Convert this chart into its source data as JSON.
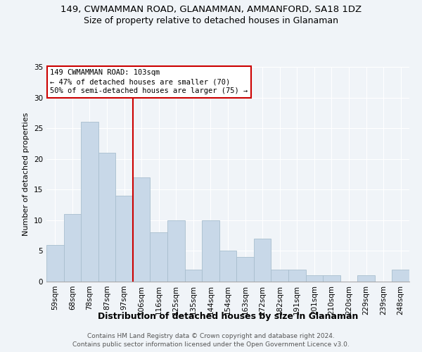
{
  "title": "149, CWMAMMAN ROAD, GLANAMMAN, AMMANFORD, SA18 1DZ",
  "subtitle": "Size of property relative to detached houses in Glanaman",
  "xlabel": "Distribution of detached houses by size in Glanaman",
  "ylabel": "Number of detached properties",
  "categories": [
    "59sqm",
    "68sqm",
    "78sqm",
    "87sqm",
    "97sqm",
    "106sqm",
    "116sqm",
    "125sqm",
    "135sqm",
    "144sqm",
    "154sqm",
    "163sqm",
    "172sqm",
    "182sqm",
    "191sqm",
    "201sqm",
    "210sqm",
    "220sqm",
    "229sqm",
    "239sqm",
    "248sqm"
  ],
  "values": [
    6,
    11,
    26,
    21,
    14,
    17,
    8,
    10,
    2,
    10,
    5,
    4,
    7,
    2,
    2,
    1,
    1,
    0,
    1,
    0,
    2
  ],
  "bar_color": "#c8d8e8",
  "bar_edge_color": "#a8bece",
  "marker_label": "149 CWMAMMAN ROAD: 103sqm",
  "annotation_line1": "← 47% of detached houses are smaller (70)",
  "annotation_line2": "50% of semi-detached houses are larger (75) →",
  "annotation_box_color": "#ffffff",
  "annotation_box_edge": "#cc0000",
  "marker_line_color": "#cc0000",
  "marker_line_index": 4.5,
  "ylim": [
    0,
    35
  ],
  "yticks": [
    0,
    5,
    10,
    15,
    20,
    25,
    30,
    35
  ],
  "footer1": "Contains HM Land Registry data © Crown copyright and database right 2024.",
  "footer2": "Contains public sector information licensed under the Open Government Licence v3.0.",
  "background_color": "#f0f4f8",
  "grid_color": "#ffffff",
  "title_fontsize": 9.5,
  "subtitle_fontsize": 9,
  "xlabel_fontsize": 9,
  "ylabel_fontsize": 8,
  "tick_fontsize": 7.5,
  "annotation_fontsize": 7.5,
  "footer_fontsize": 6.5
}
